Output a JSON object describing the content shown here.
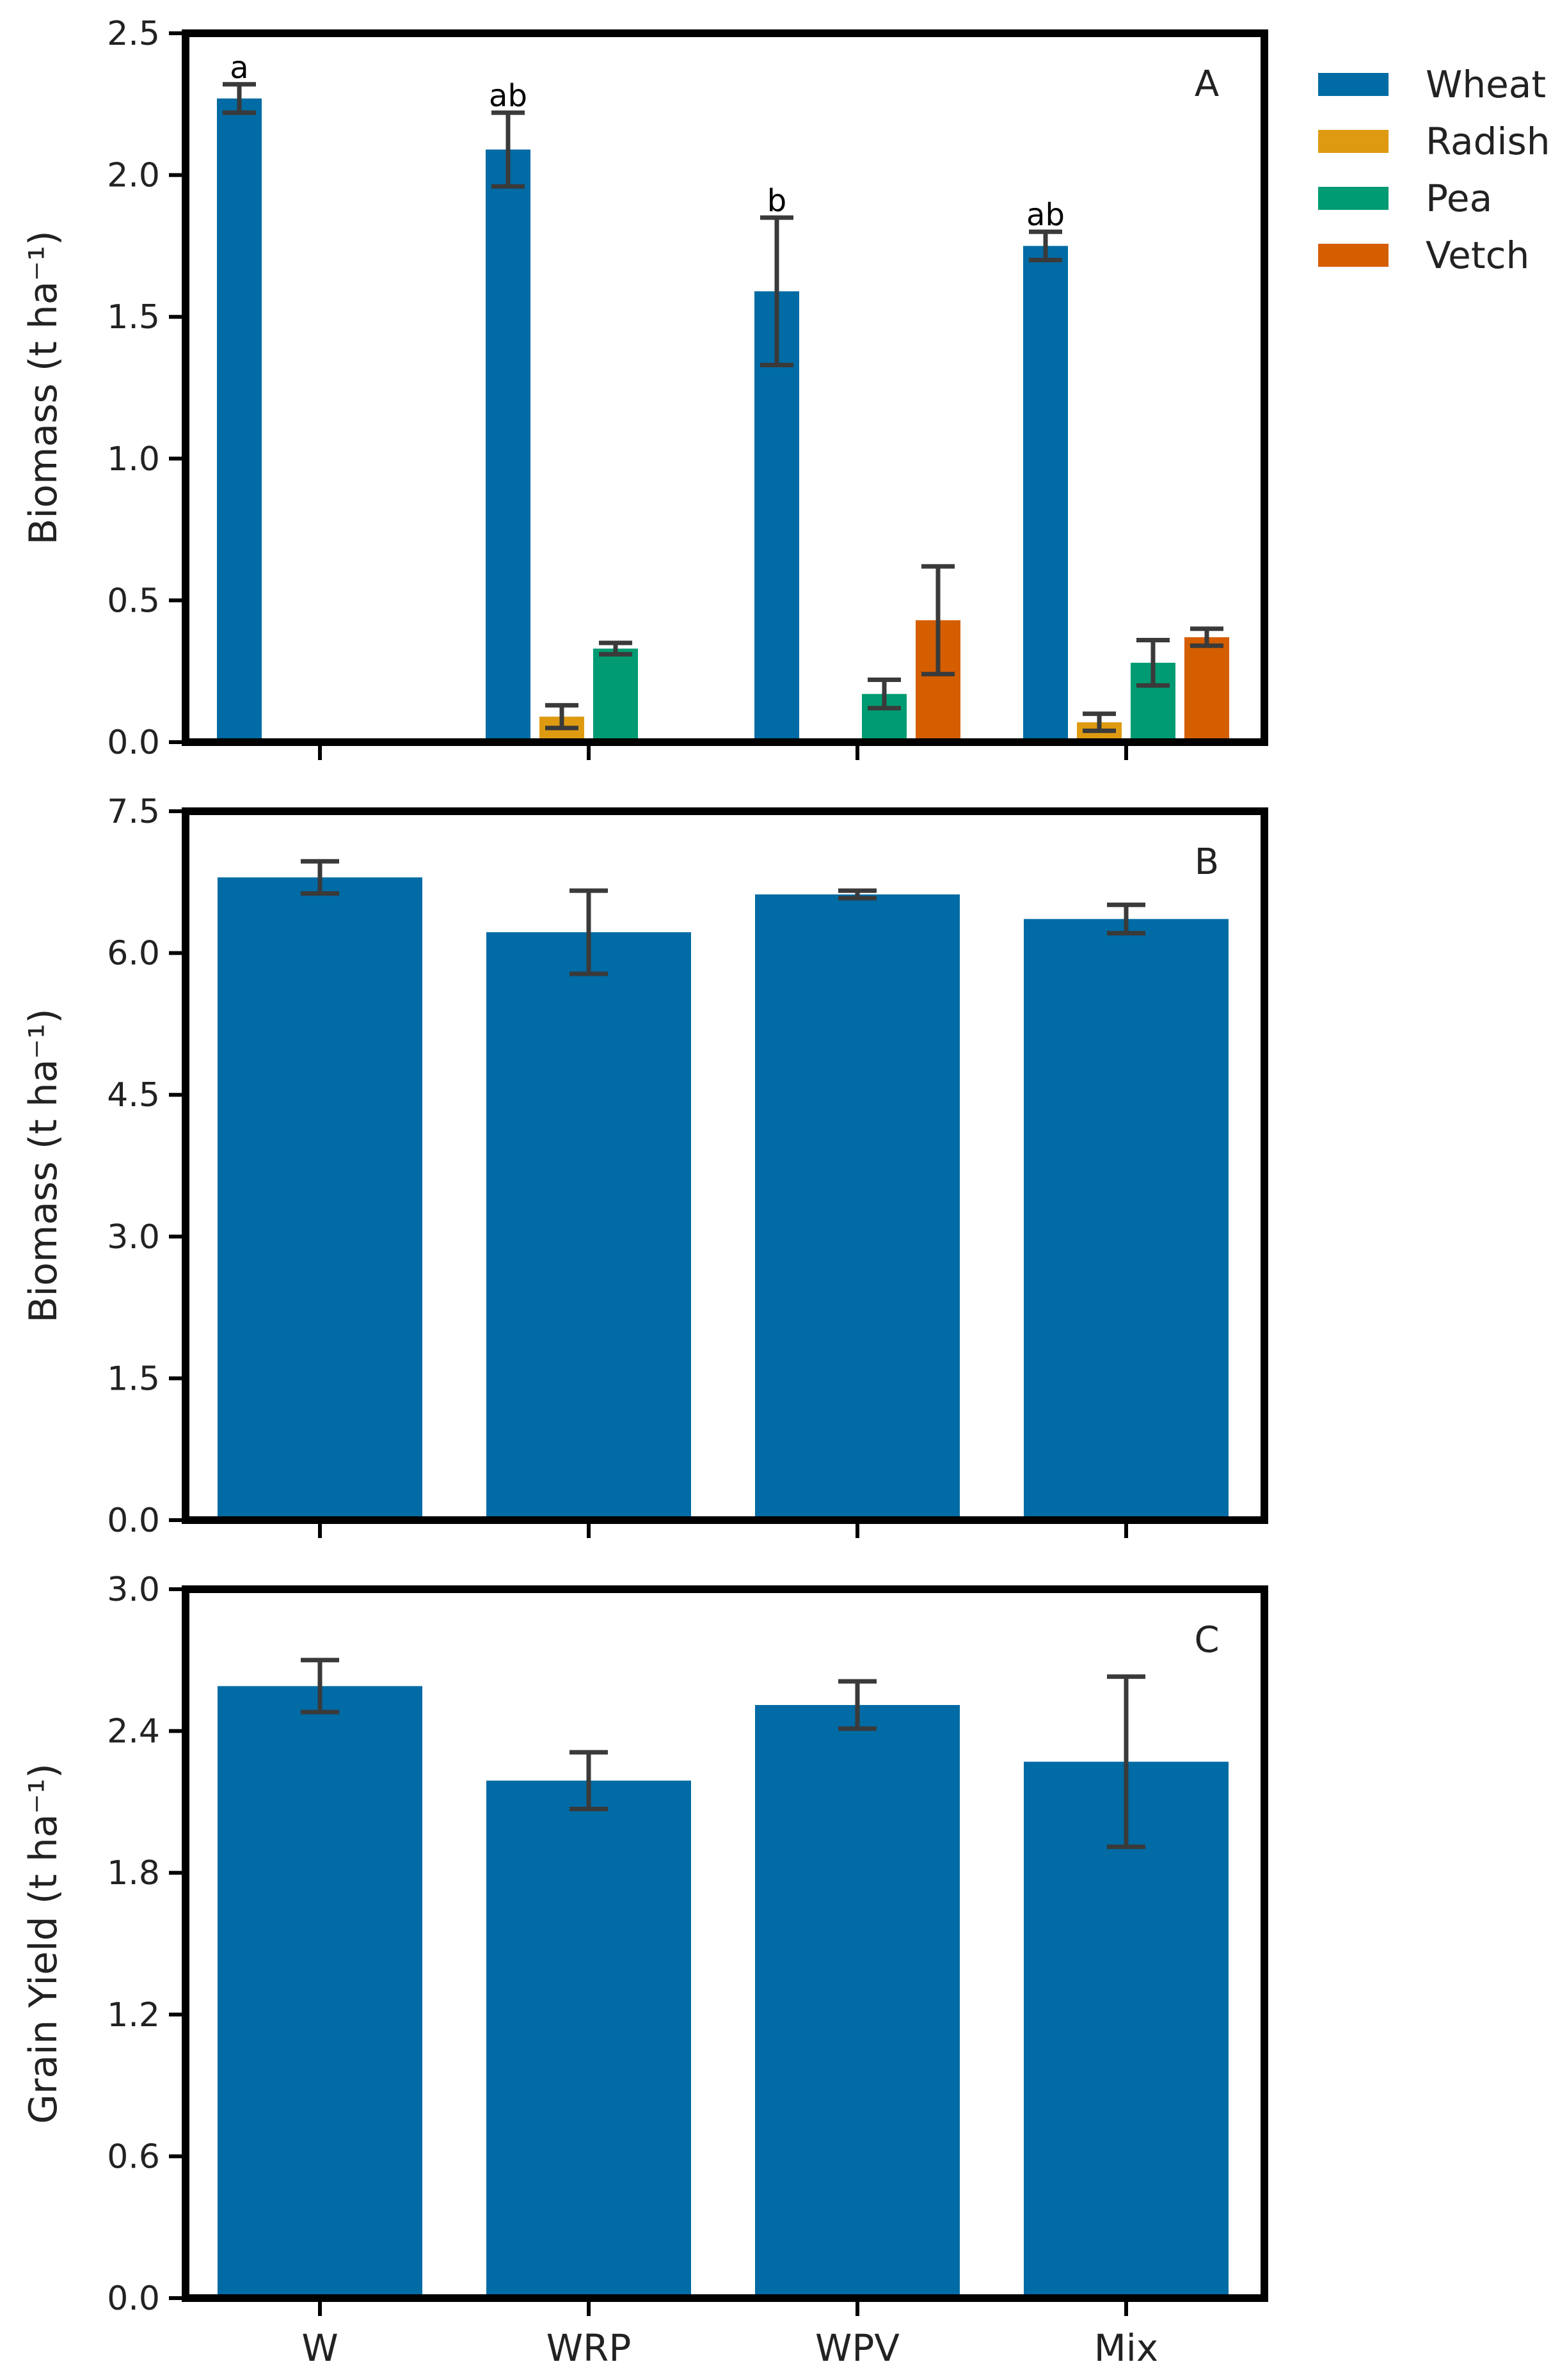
{
  "chart_data": [
    {
      "type": "bar",
      "panel": "A",
      "ylabel": "Biomass (t ha⁻¹)",
      "ylim": [
        0,
        2.5
      ],
      "yticks": [
        "0.0",
        "0.5",
        "1.0",
        "1.5",
        "2.0",
        "2.5"
      ],
      "categories": [
        "W",
        "WRP",
        "WPV",
        "Mix"
      ],
      "legend": {
        "placement": "outside-top-right"
      },
      "series": [
        {
          "name": "Wheat",
          "color": "#006BA4",
          "values": [
            2.27,
            2.09,
            1.59,
            1.75
          ],
          "errors": [
            0.05,
            0.13,
            0.26,
            0.05
          ],
          "letters": [
            "a",
            "ab",
            "b",
            "ab"
          ]
        },
        {
          "name": "Radish",
          "color": "#DE9B12",
          "values": [
            null,
            0.09,
            null,
            0.07
          ],
          "errors": [
            null,
            0.04,
            null,
            0.03
          ]
        },
        {
          "name": "Pea",
          "color": "#009B72",
          "values": [
            null,
            0.33,
            0.17,
            0.28
          ],
          "errors": [
            null,
            0.02,
            0.05,
            0.08
          ]
        },
        {
          "name": "Vetch",
          "color": "#D55E00",
          "values": [
            null,
            null,
            0.43,
            0.37
          ],
          "errors": [
            null,
            null,
            0.19,
            0.03
          ]
        }
      ]
    },
    {
      "type": "bar",
      "panel": "B",
      "ylabel": "Biomass (t ha⁻¹)",
      "ylim": [
        0,
        7.5
      ],
      "yticks": [
        "0.0",
        "1.5",
        "3.0",
        "4.5",
        "6.0",
        "7.5"
      ],
      "categories": [
        "W",
        "WRP",
        "WPV",
        "Mix"
      ],
      "series": [
        {
          "color": "#006BA4",
          "values": [
            6.8,
            6.22,
            6.62,
            6.36
          ],
          "errors": [
            0.17,
            0.44,
            0.04,
            0.15
          ]
        }
      ]
    },
    {
      "type": "bar",
      "panel": "C",
      "ylabel": "Grain Yield (t ha⁻¹)",
      "xlabel": "",
      "ylim": [
        0,
        3.0
      ],
      "yticks": [
        "0.0",
        "0.6",
        "1.2",
        "1.8",
        "2.4",
        "3.0"
      ],
      "categories": [
        "W",
        "WRP",
        "WPV",
        "Mix"
      ],
      "series": [
        {
          "color": "#006BA4",
          "values": [
            2.59,
            2.19,
            2.51,
            2.27
          ],
          "errors": [
            0.11,
            0.12,
            0.1,
            0.36
          ]
        }
      ]
    }
  ]
}
